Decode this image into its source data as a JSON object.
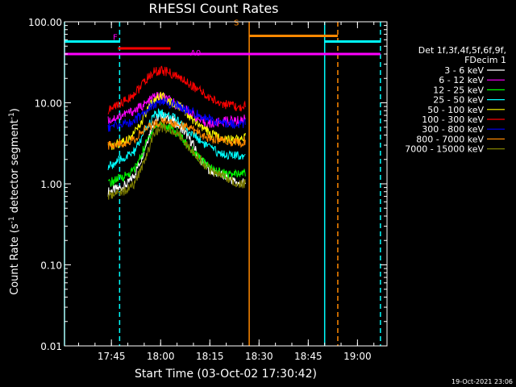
{
  "chart_data": {
    "type": "line",
    "title": "RHESSI Count Rates",
    "xlabel": "Start Time (03-Oct-02 17:30:42)",
    "ylabel_main": "Count Rate (s",
    "ylabel_sup1": "-1",
    "ylabel_mid": " detector segment",
    "ylabel_sup2": "-1",
    "ylabel_end": ")",
    "y_scale": "log",
    "xlim": [
      "17:30:42",
      "19:09:00"
    ],
    "ylim": [
      0.01,
      100
    ],
    "x_ticks": [
      {
        "time": "17:45",
        "label": "17:45"
      },
      {
        "time": "18:00",
        "label": "18:00"
      },
      {
        "time": "18:15",
        "label": "18:15"
      },
      {
        "time": "18:30",
        "label": "18:30"
      },
      {
        "time": "18:45",
        "label": "18:45"
      },
      {
        "time": "19:00",
        "label": "19:00"
      }
    ],
    "y_ticks": [
      {
        "value": 0.01,
        "label": "0.01"
      },
      {
        "value": 0.1,
        "label": "0.10"
      },
      {
        "value": 1,
        "label": "1.00"
      },
      {
        "value": 10,
        "label": "10.00"
      },
      {
        "value": 100,
        "label": "100.00"
      }
    ],
    "legend": {
      "placement": "right",
      "header": [
        "Det 1f,3f,4f,5f,6f,9f,",
        "FDecim 1"
      ],
      "entries": [
        {
          "label": "3 - 6 keV",
          "color": "#ffffff"
        },
        {
          "label": "6 - 12 keV",
          "color": "#ff00ff"
        },
        {
          "label": "12 - 25 keV",
          "color": "#00ff00"
        },
        {
          "label": "25 - 50 keV",
          "color": "#00ffff"
        },
        {
          "label": "50 - 100 keV",
          "color": "#ffff00"
        },
        {
          "label": "100 - 300 keV",
          "color": "#ff0000"
        },
        {
          "label": "300 - 800 keV",
          "color": "#0000ff"
        },
        {
          "label": "800 - 7000 keV",
          "color": "#ff8800"
        },
        {
          "label": "7000 - 15000 keV",
          "color": "#808000"
        }
      ]
    },
    "series_x": [
      "17:44:00",
      "17:46:00",
      "17:48:00",
      "17:50:00",
      "17:52:00",
      "17:54:00",
      "17:56:00",
      "17:58:00",
      "18:00:00",
      "18:02:00",
      "18:04:00",
      "18:06:00",
      "18:08:00",
      "18:10:00",
      "18:12:00",
      "18:14:00",
      "18:16:00",
      "18:18:00",
      "18:20:00",
      "18:22:00",
      "18:24:00",
      "18:26:00"
    ],
    "series": [
      {
        "name": "3 - 6 keV",
        "color": "#ffffff",
        "values": [
          0.8,
          0.85,
          0.9,
          1.0,
          1.3,
          2.0,
          3.5,
          6.0,
          7.0,
          6.5,
          6.0,
          5.0,
          4.0,
          3.0,
          2.0,
          1.6,
          1.4,
          1.3,
          1.2,
          1.1,
          1.0,
          1.05
        ]
      },
      {
        "name": "6 - 12 keV",
        "color": "#ff00ff",
        "values": [
          6.0,
          6.5,
          7.0,
          7.5,
          8.0,
          9.0,
          10.0,
          12.0,
          12.0,
          11.0,
          10.0,
          9.0,
          8.0,
          7.0,
          6.0,
          5.5,
          5.5,
          5.8,
          6.0,
          6.0,
          6.0,
          6.5
        ]
      },
      {
        "name": "12 - 25 keV",
        "color": "#00ff00",
        "values": [
          1.0,
          1.1,
          1.2,
          1.3,
          1.5,
          2.2,
          3.5,
          5.0,
          5.5,
          5.0,
          4.5,
          4.0,
          3.0,
          2.5,
          2.0,
          1.7,
          1.5,
          1.4,
          1.3,
          1.3,
          1.3,
          1.4
        ]
      },
      {
        "name": "25 - 50 keV",
        "color": "#00ffff",
        "values": [
          1.6,
          1.8,
          2.0,
          2.2,
          2.5,
          3.5,
          5.0,
          7.0,
          7.5,
          7.0,
          6.5,
          6.0,
          4.5,
          4.0,
          3.5,
          3.0,
          2.6,
          2.4,
          2.3,
          2.2,
          2.2,
          2.4
        ]
      },
      {
        "name": "50 - 100 keV",
        "color": "#ffff00",
        "values": [
          2.8,
          3.0,
          3.3,
          3.6,
          4.2,
          5.5,
          8.0,
          11.0,
          12.0,
          11.0,
          10.0,
          9.0,
          7.0,
          6.0,
          5.0,
          4.5,
          4.0,
          3.8,
          3.6,
          3.5,
          3.5,
          3.8
        ]
      },
      {
        "name": "100 - 300 keV",
        "color": "#ff0000",
        "values": [
          8.0,
          9.0,
          10.0,
          11.0,
          13.0,
          16.0,
          20.0,
          24.0,
          25.0,
          24.0,
          22.0,
          20.0,
          18.0,
          16.0,
          14.0,
          12.0,
          11.0,
          10.0,
          9.5,
          9.0,
          8.5,
          9.5
        ]
      },
      {
        "name": "300 - 800 keV",
        "color": "#0000ff",
        "values": [
          5.0,
          5.2,
          5.4,
          5.6,
          6.0,
          7.0,
          8.5,
          9.5,
          10.0,
          10.0,
          9.5,
          9.0,
          8.0,
          7.5,
          7.0,
          6.5,
          6.0,
          5.8,
          5.6,
          5.5,
          5.4,
          5.6
        ]
      },
      {
        "name": "800 - 7000 keV",
        "color": "#ff8800",
        "values": [
          3.0,
          3.1,
          3.2,
          3.3,
          3.6,
          4.2,
          5.0,
          5.5,
          5.8,
          5.8,
          5.6,
          5.4,
          5.0,
          4.6,
          4.2,
          3.8,
          3.6,
          3.5,
          3.4,
          3.3,
          3.2,
          3.4
        ]
      },
      {
        "name": "7000 - 15000 keV",
        "color": "#808000",
        "values": [
          0.7,
          0.75,
          0.8,
          0.85,
          1.0,
          1.5,
          2.5,
          4.0,
          5.0,
          4.8,
          4.5,
          4.0,
          3.0,
          2.5,
          2.0,
          1.6,
          1.4,
          1.3,
          1.2,
          1.1,
          1.0,
          1.0
        ]
      }
    ],
    "flag_bars": [
      {
        "label": "",
        "color": "#00ffff",
        "y": 57,
        "segments": [
          [
            "17:30:42",
            "17:47:30"
          ],
          [
            "18:50:00",
            "19:07:00"
          ]
        ]
      },
      {
        "label": "F",
        "color": "#ff00ff",
        "y": 40,
        "segments": [
          [
            "17:30:42",
            "18:10:00"
          ],
          [
            "18:10:00",
            "19:07:00"
          ]
        ]
      },
      {
        "label": "",
        "color": "#ff0000",
        "y": 47,
        "segments": [
          [
            "17:47:00",
            "18:03:00"
          ]
        ]
      },
      {
        "label": "S",
        "color": "#ff8800",
        "y": 67,
        "segments": [
          [
            "18:27:00",
            "18:54:00"
          ]
        ]
      },
      {
        "label": "A0",
        "color": "#ff00ff",
        "y": 32,
        "segments": []
      }
    ],
    "vlines": [
      {
        "time": "17:30:42",
        "color": "#00ffff",
        "style": "solid"
      },
      {
        "time": "17:47:30",
        "color": "#00ffff",
        "style": "dashed"
      },
      {
        "time": "18:27:00",
        "color": "#ff8800",
        "style": "solid"
      },
      {
        "time": "18:50:00",
        "color": "#00ffff",
        "style": "solid"
      },
      {
        "time": "18:54:00",
        "color": "#ff8800",
        "style": "dashed"
      },
      {
        "time": "19:07:00",
        "color": "#00ffff",
        "style": "dashed"
      }
    ]
  },
  "footer_timestamp": "19-Oct-2021 23:06"
}
